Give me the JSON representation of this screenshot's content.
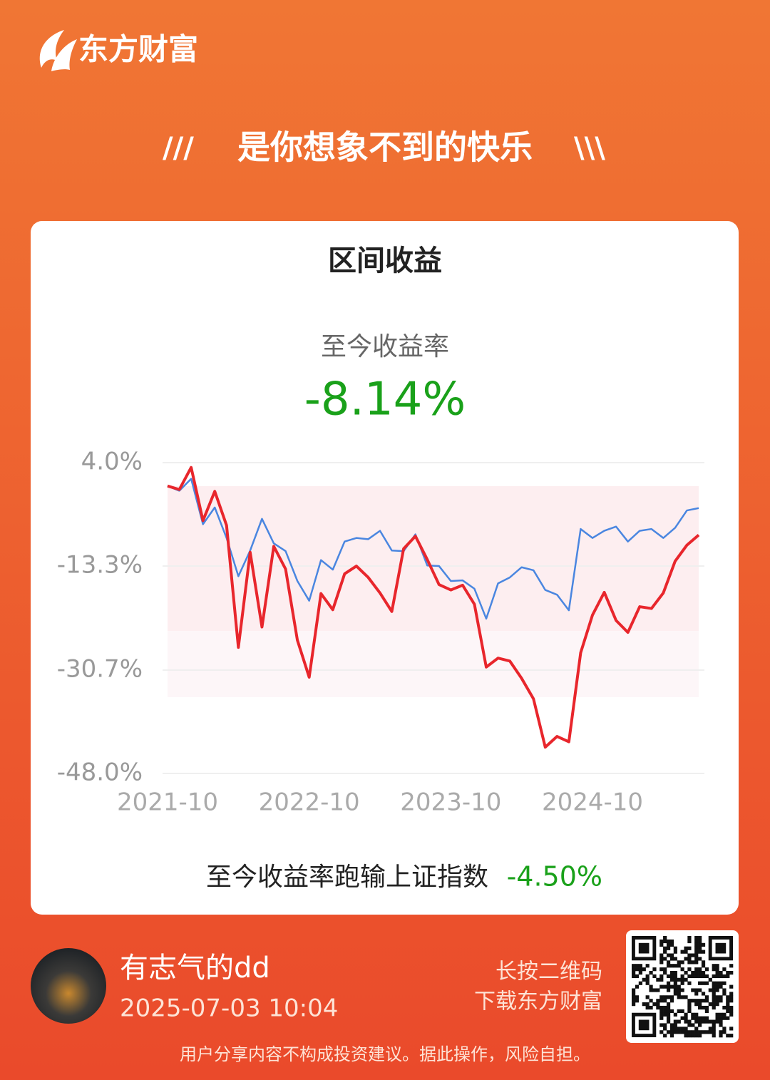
{
  "brand": "东方财富",
  "slogan": "是你想象不到的快乐",
  "card": {
    "title": "区间收益",
    "return_label": "至今收益率",
    "return_value": "-8.14%",
    "compare_text": "至今收益率跑输上证指数",
    "compare_value": "-4.50%"
  },
  "chart_data": {
    "type": "line",
    "categories": [
      "2021-10",
      null,
      null,
      null,
      null,
      null,
      null,
      null,
      null,
      null,
      null,
      null,
      "2022-10",
      null,
      null,
      null,
      null,
      null,
      null,
      null,
      null,
      null,
      null,
      null,
      "2023-10",
      null,
      null,
      null,
      null,
      null,
      null,
      null,
      null,
      null,
      null,
      null,
      "2024-10",
      null,
      null,
      null,
      null,
      null,
      null,
      null,
      null,
      null
    ],
    "series": [
      {
        "color": "#e8262c",
        "values": [
          0.1,
          -0.5,
          3.2,
          -5.7,
          -0.8,
          -6.5,
          -26.9,
          -11.0,
          -23.5,
          -10.0,
          -13.8,
          -25.7,
          -31.9,
          -17.9,
          -20.6,
          -14.6,
          -13.3,
          -15.2,
          -17.8,
          -20.9,
          -10.4,
          -8.3,
          -12.2,
          -16.4,
          -17.3,
          -16.5,
          -19.7,
          -30.2,
          -28.7,
          -29.2,
          -32.1,
          -35.5,
          -43.6,
          -41.8,
          -42.7,
          -27.8,
          -21.5,
          -17.7,
          -22.4,
          -24.4,
          -20.1,
          -20.4,
          -17.8,
          -12.5,
          -9.8,
          -8.1
        ]
      },
      {
        "color": "#4a86e0",
        "values": [
          0.1,
          -0.7,
          1.3,
          -6.3,
          -3.5,
          -8.6,
          -15.0,
          -10.7,
          -5.4,
          -9.5,
          -10.8,
          -15.8,
          -19.1,
          -12.3,
          -13.9,
          -9.2,
          -8.6,
          -8.8,
          -7.4,
          -10.7,
          -10.8,
          -8.0,
          -13.2,
          -13.3,
          -15.8,
          -15.7,
          -17.1,
          -22.1,
          -16.2,
          -15.2,
          -13.5,
          -14.0,
          -17.3,
          -18.1,
          -20.7,
          -7.1,
          -8.6,
          -7.4,
          -6.7,
          -9.2,
          -7.4,
          -7.1,
          -8.6,
          -6.9,
          -4.0,
          -3.6
        ]
      }
    ],
    "ylim": [
      -48,
      4
    ],
    "yticks": [
      {
        "value": 4,
        "label": "4.0%"
      },
      {
        "value": -13.3,
        "label": "-13.3%"
      },
      {
        "value": -30.7,
        "label": "-30.7%"
      },
      {
        "value": -48,
        "label": "-48.0%"
      }
    ],
    "grid": true
  },
  "user": {
    "name": "有志气的dd",
    "time": "2025-07-03 10:04"
  },
  "qr_hint": [
    "长按二维码",
    "下载东方财富"
  ],
  "disclaimer": "用户分享内容不构成投资建议。据此操作，风险自担。"
}
